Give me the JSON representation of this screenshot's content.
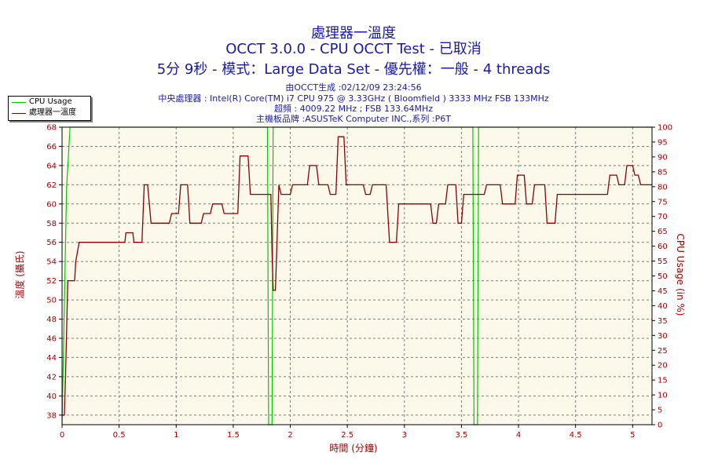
{
  "chart_data": {
    "type": "line",
    "title": "處理器一溫度",
    "subtitle": "OCCT 3.0.0 - CPU OCCT Test - 已取消",
    "subtitle2": "5分 9秒 - 模式：Large Data Set - 優先權：一般 - 4 threads",
    "info": [
      "由OCCT生成 :02/12/09 23:24:56",
      "中央處理器 : Intel(R) Core(TM) i7 CPU 975 @ 3.33GHz ( Bloomfield ) 3333 MHz FSB 133MHz",
      "超頻 : 4009.22 MHz ; FSB 133.64MHz",
      "主機板品牌 :ASUSTeK Computer INC.,系列 :P6T"
    ],
    "xlabel": "時間 (分鐘)",
    "ylabel": "溫度 (攝氏)",
    "y2label": "CPU Usage (in %)",
    "xlim": [
      0,
      5.17
    ],
    "ylim": [
      37,
      68
    ],
    "y2lim": [
      0,
      100
    ],
    "xticks": [
      "0",
      "0.5",
      "1",
      "1.5",
      "2",
      "2.5",
      "3",
      "3.5",
      "4",
      "4.5",
      "5"
    ],
    "xtick_values": [
      0,
      0.5,
      1,
      1.5,
      2,
      2.5,
      3,
      3.5,
      4,
      4.5,
      5
    ],
    "yticks": [
      38,
      40,
      42,
      44,
      46,
      48,
      50,
      52,
      54,
      56,
      58,
      60,
      62,
      64,
      66,
      68
    ],
    "y2ticks": [
      0,
      5,
      10,
      15,
      20,
      25,
      30,
      35,
      40,
      45,
      50,
      55,
      60,
      65,
      70,
      75,
      80,
      85,
      90,
      95,
      100
    ],
    "grid": true,
    "legend": "top-left",
    "colors": {
      "temp": "#8b0000",
      "cpu": "#00c800",
      "plot_bg": "#fdf9ea"
    },
    "series": [
      {
        "name": "CPU Usage",
        "axis": "right",
        "x": [
          0,
          0.04,
          0.07,
          0.08,
          1.8,
          1.81,
          1.84,
          1.85,
          3.6,
          3.61,
          3.64,
          3.65,
          5.17
        ],
        "values": [
          0,
          80,
          100,
          100,
          100,
          0,
          0,
          100,
          100,
          0,
          0,
          100,
          100
        ]
      },
      {
        "name": "處理器一溫度",
        "axis": "left",
        "x": [
          0,
          0.02,
          0.03,
          0.05,
          0.06,
          0.11,
          0.12,
          0.15,
          0.55,
          0.56,
          0.62,
          0.63,
          0.7,
          0.72,
          0.75,
          0.78,
          0.8,
          0.94,
          0.96,
          1.02,
          1.04,
          1.1,
          1.12,
          1.22,
          1.24,
          1.3,
          1.32,
          1.4,
          1.42,
          1.54,
          1.56,
          1.63,
          1.65,
          1.83,
          1.84,
          1.85,
          1.87,
          1.9,
          1.92,
          2.0,
          2.02,
          2.15,
          2.17,
          2.23,
          2.25,
          2.33,
          2.35,
          2.4,
          2.42,
          2.47,
          2.49,
          2.64,
          2.66,
          2.7,
          2.72,
          2.84,
          2.87,
          2.93,
          2.95,
          3.23,
          3.25,
          3.28,
          3.3,
          3.36,
          3.38,
          3.45,
          3.47,
          3.5,
          3.52,
          3.7,
          3.72,
          3.84,
          3.86,
          3.97,
          3.99,
          4.05,
          4.07,
          4.12,
          4.14,
          4.23,
          4.25,
          4.32,
          4.34,
          4.4,
          4.42,
          4.78,
          4.8,
          4.86,
          4.88,
          4.93,
          4.95,
          5.0,
          5.02,
          5.05,
          5.07,
          5.17
        ],
        "values": [
          38,
          38,
          42,
          52,
          52,
          52,
          54,
          56,
          56,
          57,
          57,
          56,
          56,
          62,
          62,
          58,
          58,
          58,
          59,
          59,
          62,
          62,
          58,
          58,
          59,
          59,
          60,
          60,
          59,
          59,
          65,
          65,
          61,
          61,
          55,
          51,
          51,
          62,
          61,
          61,
          62,
          62,
          64,
          64,
          62,
          62,
          61,
          61,
          67,
          67,
          62,
          62,
          61,
          61,
          62,
          62,
          56,
          56,
          60,
          60,
          58,
          58,
          60,
          60,
          62,
          62,
          58,
          58,
          61,
          61,
          62,
          62,
          60,
          60,
          63,
          63,
          60,
          60,
          62,
          62,
          58,
          58,
          61,
          61,
          61,
          61,
          63,
          63,
          62,
          62,
          64,
          64,
          63,
          63,
          62,
          62
        ]
      }
    ]
  }
}
